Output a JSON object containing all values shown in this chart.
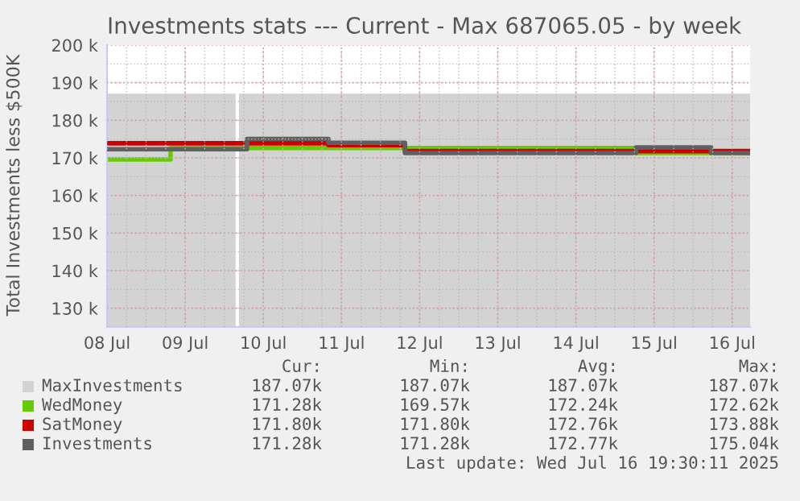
{
  "chart_data": {
    "type": "step",
    "title": "Investments stats --- Current - Max 687065.05 - by week",
    "ylabel": "Total Investments less $500K",
    "xlim": [
      "2025-07-08T00:00",
      "2025-07-16T05:30"
    ],
    "xticks": [
      {
        "value": "2025-07-08",
        "label": "08 Jul"
      },
      {
        "value": "2025-07-09",
        "label": "09 Jul"
      },
      {
        "value": "2025-07-10",
        "label": "10 Jul"
      },
      {
        "value": "2025-07-11",
        "label": "11 Jul"
      },
      {
        "value": "2025-07-12",
        "label": "12 Jul"
      },
      {
        "value": "2025-07-13",
        "label": "13 Jul"
      },
      {
        "value": "2025-07-14",
        "label": "14 Jul"
      },
      {
        "value": "2025-07-15",
        "label": "15 Jul"
      },
      {
        "value": "2025-07-16",
        "label": "16 Jul"
      }
    ],
    "ylim": [
      125000,
      200000
    ],
    "yticks": [
      {
        "value": 130000,
        "label": "130 k"
      },
      {
        "value": 140000,
        "label": "140 k"
      },
      {
        "value": 150000,
        "label": "150 k"
      },
      {
        "value": 160000,
        "label": "160 k"
      },
      {
        "value": 170000,
        "label": "170 k"
      },
      {
        "value": 180000,
        "label": "180 k"
      },
      {
        "value": 190000,
        "label": "190 k"
      },
      {
        "value": 200000,
        "label": "200 k"
      }
    ],
    "grid": true,
    "legend": "bottom",
    "series": [
      {
        "name": "MaxInvestments",
        "type": "area",
        "color": "#d3d3d3",
        "x": [
          "2025-07-08T00:00",
          "2025-07-09T15:30",
          "2025-07-09T16:00",
          "2025-07-09T16:30",
          "2025-07-16T05:30"
        ],
        "values": [
          187070,
          187070,
          null,
          187070,
          187070
        ]
      },
      {
        "name": "WedMoney",
        "color": "#66cc00",
        "x": [
          "2025-07-08T00:00",
          "2025-07-08T19:30",
          "2025-07-14T18:30",
          "2025-07-16T05:30"
        ],
        "values": [
          169570,
          172620,
          171280,
          171280
        ]
      },
      {
        "name": "SatMoney",
        "color": "#cc0000",
        "x": [
          "2025-07-08T00:00",
          "2025-07-10T20:00",
          "2025-07-11T19:30",
          "2025-07-16T05:30"
        ],
        "values": [
          173880,
          173400,
          171800,
          171800
        ]
      },
      {
        "name": "Investments",
        "color": "#606060",
        "x": [
          "2025-07-08T00:00",
          "2025-07-09T19:00",
          "2025-07-10T20:00",
          "2025-07-11T19:30",
          "2025-07-14T18:30",
          "2025-07-15T17:30",
          "2025-07-16T05:30"
        ],
        "values": [
          172300,
          175040,
          174000,
          171280,
          172800,
          171280,
          171280
        ]
      }
    ],
    "annotations": [
      "Cur:",
      "Min:",
      "Avg:",
      "Max:",
      "187.07k",
      "187.07k",
      "187.07k",
      "187.07k",
      "171.28k",
      "169.57k",
      "172.24k",
      "172.62k",
      "171.80k",
      "171.80k",
      "172.76k",
      "173.88k",
      "171.28k",
      "171.28k",
      "172.77k",
      "175.04k",
      "Last update: Wed Jul 16 19:30:11 2025"
    ]
  }
}
